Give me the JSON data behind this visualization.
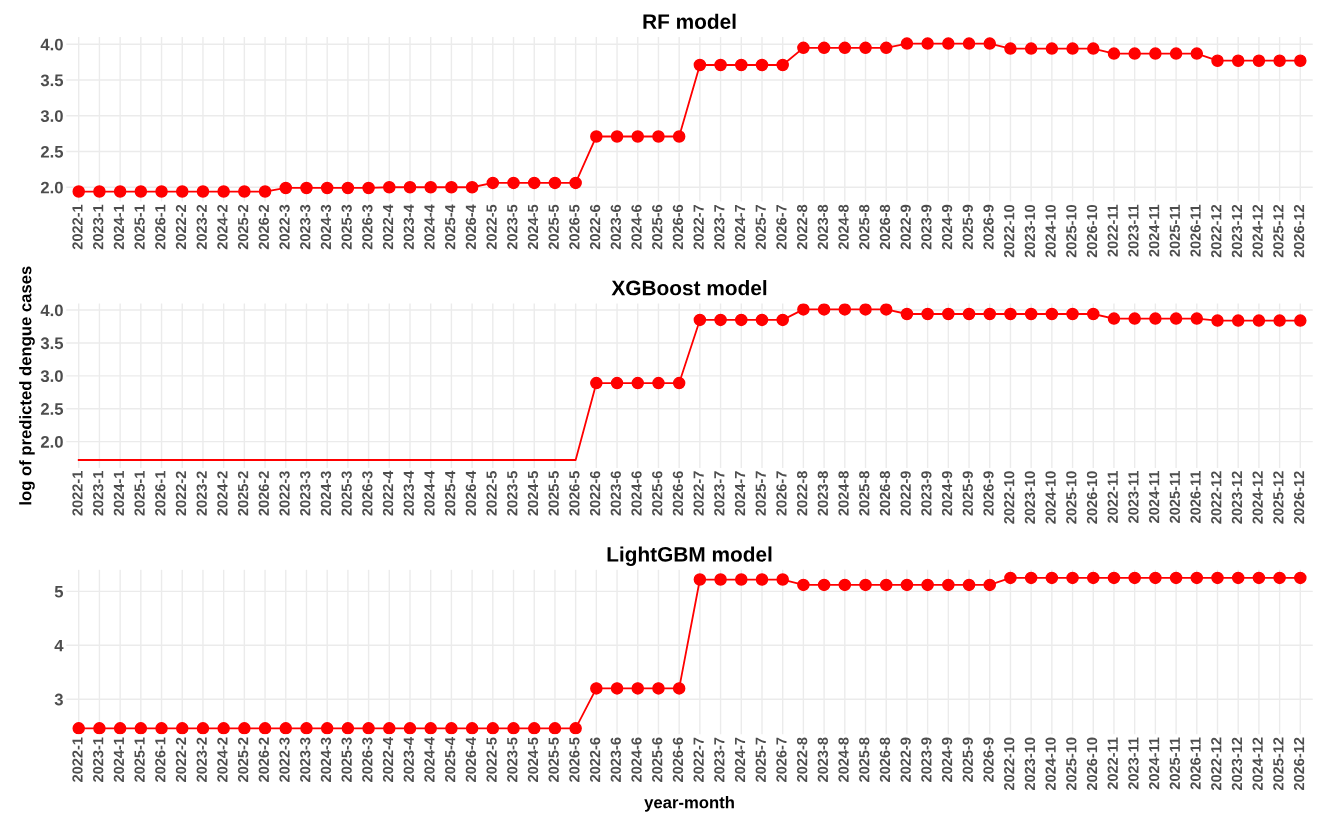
{
  "chart_data": [
    {
      "type": "line",
      "title": "RF model",
      "categories": [
        "2022-1",
        "2023-1",
        "2024-1",
        "2025-1",
        "2026-1",
        "2022-2",
        "2023-2",
        "2024-2",
        "2025-2",
        "2026-2",
        "2022-3",
        "2023-3",
        "2024-3",
        "2025-3",
        "2026-3",
        "2022-4",
        "2023-4",
        "2024-4",
        "2025-4",
        "2026-4",
        "2022-5",
        "2023-5",
        "2024-5",
        "2025-5",
        "2026-5",
        "2022-6",
        "2023-6",
        "2024-6",
        "2025-6",
        "2026-6",
        "2022-7",
        "2023-7",
        "2024-7",
        "2025-7",
        "2026-7",
        "2022-8",
        "2023-8",
        "2024-8",
        "2025-8",
        "2026-8",
        "2022-9",
        "2023-9",
        "2024-9",
        "2025-9",
        "2026-9",
        "2022-10",
        "2023-10",
        "2024-10",
        "2025-10",
        "2026-10",
        "2022-11",
        "2023-11",
        "2024-11",
        "2025-11",
        "2026-11",
        "2022-12",
        "2023-12",
        "2024-12",
        "2025-12",
        "2026-12"
      ],
      "series": [
        {
          "color": "#ff0000",
          "marker": "circle",
          "values": [
            1.94,
            1.94,
            1.94,
            1.94,
            1.94,
            1.94,
            1.94,
            1.94,
            1.94,
            1.94,
            1.99,
            1.99,
            1.99,
            1.99,
            1.99,
            2.0,
            2.0,
            2.0,
            2.0,
            2.0,
            2.06,
            2.06,
            2.06,
            2.06,
            2.06,
            2.71,
            2.71,
            2.71,
            2.71,
            2.71,
            3.71,
            3.71,
            3.71,
            3.71,
            3.71,
            3.95,
            3.95,
            3.95,
            3.95,
            3.95,
            4.01,
            4.01,
            4.01,
            4.01,
            4.01,
            3.94,
            3.94,
            3.94,
            3.94,
            3.94,
            3.87,
            3.87,
            3.87,
            3.87,
            3.87,
            3.77,
            3.77,
            3.77,
            3.77,
            3.77
          ]
        }
      ],
      "ylim": [
        1.8,
        4.1
      ],
      "yticks": [
        {
          "value": 2.0,
          "label": "2.0"
        },
        2.5,
        {
          "value": 3.0,
          "label": "3.0"
        },
        3.5,
        {
          "value": 4.0,
          "label": "4.0"
        }
      ],
      "grid": true
    },
    {
      "type": "line",
      "title": "XGBoost model",
      "ylabel": "log of predicted dengue cases",
      "categories": [
        "2022-1",
        "2023-1",
        "2024-1",
        "2025-1",
        "2026-1",
        "2022-2",
        "2023-2",
        "2024-2",
        "2025-2",
        "2026-2",
        "2022-3",
        "2023-3",
        "2024-3",
        "2025-3",
        "2026-3",
        "2022-4",
        "2023-4",
        "2024-4",
        "2025-4",
        "2026-4",
        "2022-5",
        "2023-5",
        "2024-5",
        "2025-5",
        "2026-5",
        "2022-6",
        "2023-6",
        "2024-6",
        "2025-6",
        "2026-6",
        "2022-7",
        "2023-7",
        "2024-7",
        "2025-7",
        "2026-7",
        "2022-8",
        "2023-8",
        "2024-8",
        "2025-8",
        "2026-8",
        "2022-9",
        "2023-9",
        "2024-9",
        "2025-9",
        "2026-9",
        "2022-10",
        "2023-10",
        "2024-10",
        "2025-10",
        "2026-10",
        "2022-11",
        "2023-11",
        "2024-11",
        "2025-11",
        "2026-11",
        "2022-12",
        "2023-12",
        "2024-12",
        "2025-12",
        "2026-12"
      ],
      "series": [
        {
          "color": "#ff0000",
          "marker": "none",
          "values": [
            1.72,
            1.72,
            1.72,
            1.72,
            1.72,
            1.72,
            1.72,
            1.72,
            1.72,
            1.72,
            1.72,
            1.72,
            1.72,
            1.72,
            1.72,
            1.72,
            1.72,
            1.72,
            1.72,
            1.72,
            1.72,
            1.72,
            1.72,
            1.72,
            1.72,
            2.89,
            null,
            null,
            null,
            null,
            null,
            null,
            null,
            null,
            null,
            null,
            null,
            null,
            null,
            null,
            null,
            null,
            null,
            null,
            null,
            null,
            null,
            null,
            null,
            null,
            null,
            null,
            null,
            null,
            null,
            null,
            null,
            null,
            null,
            null
          ]
        },
        {
          "color": "#ff0000",
          "marker": "circle",
          "values": [
            null,
            null,
            null,
            null,
            null,
            null,
            null,
            null,
            null,
            null,
            null,
            null,
            null,
            null,
            null,
            null,
            null,
            null,
            null,
            null,
            null,
            null,
            null,
            null,
            null,
            2.89,
            2.89,
            2.89,
            2.89,
            2.89,
            3.85,
            3.85,
            3.85,
            3.85,
            3.85,
            4.01,
            4.01,
            4.01,
            4.01,
            4.01,
            3.94,
            3.94,
            3.94,
            3.94,
            3.94,
            3.94,
            3.94,
            3.94,
            3.94,
            3.94,
            3.87,
            3.87,
            3.87,
            3.87,
            3.87,
            3.84,
            3.84,
            3.84,
            3.84,
            3.84
          ]
        }
      ],
      "ylim": [
        1.6,
        4.1
      ],
      "yticks": [
        {
          "value": 2.0,
          "label": "2.0"
        },
        2.5,
        {
          "value": 3.0,
          "label": "3.0"
        },
        3.5,
        {
          "value": 4.0,
          "label": "4.0"
        }
      ],
      "grid": true
    },
    {
      "type": "line",
      "title": "LightGBM model",
      "xlabel": "year-month",
      "categories": [
        "2022-1",
        "2023-1",
        "2024-1",
        "2025-1",
        "2026-1",
        "2022-2",
        "2023-2",
        "2024-2",
        "2025-2",
        "2026-2",
        "2022-3",
        "2023-3",
        "2024-3",
        "2025-3",
        "2026-3",
        "2022-4",
        "2023-4",
        "2024-4",
        "2025-4",
        "2026-4",
        "2022-5",
        "2023-5",
        "2024-5",
        "2025-5",
        "2026-5",
        "2022-6",
        "2023-6",
        "2024-6",
        "2025-6",
        "2026-6",
        "2022-7",
        "2023-7",
        "2024-7",
        "2025-7",
        "2026-7",
        "2022-8",
        "2023-8",
        "2024-8",
        "2025-8",
        "2026-8",
        "2022-9",
        "2023-9",
        "2024-9",
        "2025-9",
        "2026-9",
        "2022-10",
        "2023-10",
        "2024-10",
        "2025-10",
        "2026-10",
        "2022-11",
        "2023-11",
        "2024-11",
        "2025-11",
        "2026-11",
        "2022-12",
        "2023-12",
        "2024-12",
        "2025-12",
        "2026-12"
      ],
      "series": [
        {
          "color": "#ff0000",
          "marker": "circle",
          "values": [
            2.46,
            2.46,
            2.46,
            2.46,
            2.46,
            2.46,
            2.46,
            2.46,
            2.46,
            2.46,
            2.46,
            2.46,
            2.46,
            2.46,
            2.46,
            2.46,
            2.46,
            2.46,
            2.46,
            2.46,
            2.46,
            2.46,
            2.46,
            2.46,
            2.46,
            3.2,
            3.2,
            3.2,
            3.2,
            3.2,
            5.22,
            5.22,
            5.22,
            5.22,
            5.22,
            5.12,
            5.12,
            5.12,
            5.12,
            5.12,
            5.12,
            5.12,
            5.12,
            5.12,
            5.12,
            5.25,
            5.25,
            5.25,
            5.25,
            5.25,
            5.25,
            5.25,
            5.25,
            5.25,
            5.25,
            5.25,
            5.25,
            5.25,
            5.25,
            5.25
          ]
        }
      ],
      "ylim": [
        2.35,
        5.4
      ],
      "yticks": [
        3,
        4,
        5
      ],
      "grid": true
    }
  ]
}
